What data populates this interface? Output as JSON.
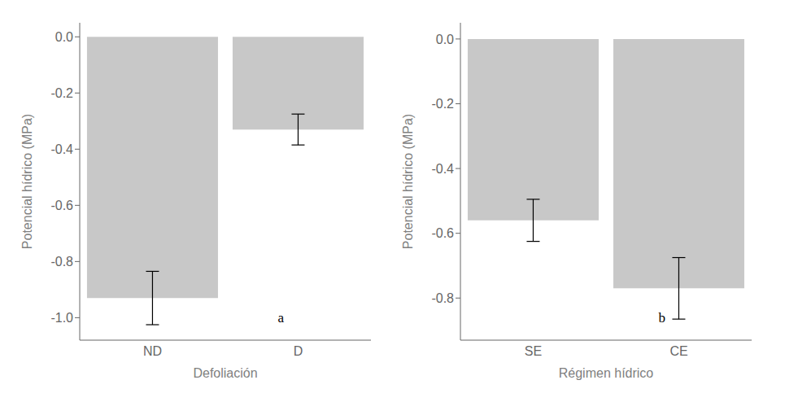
{
  "chart_data": [
    {
      "type": "bar",
      "categories": [
        "ND",
        "D"
      ],
      "values": [
        -0.93,
        -0.33
      ],
      "errors": [
        0.095,
        0.055
      ],
      "xlabel": "Defoliación",
      "ylabel": "Potencial hídrico (MPa)",
      "ylim": [
        -1.08,
        0.05
      ],
      "yticks": [
        {
          "value": 0.0,
          "label": "0.0"
        },
        -0.2,
        -0.4,
        -0.6,
        -0.8,
        {
          "value": -1.0,
          "label": "-1.0"
        }
      ],
      "annotation": "a",
      "color": "#c8c8c8"
    },
    {
      "type": "bar",
      "categories": [
        "SE",
        "CE"
      ],
      "values": [
        -0.56,
        -0.77
      ],
      "errors": [
        0.065,
        0.095
      ],
      "xlabel": "Régimen hídrico",
      "ylabel": "Potencial hídrico (MPa)",
      "ylim": [
        -0.93,
        0.05
      ],
      "yticks": [
        {
          "value": 0.0,
          "label": "0.0"
        },
        -0.2,
        -0.4,
        -0.6,
        {
          "value": -0.8,
          "label": "-0.8"
        }
      ],
      "annotation": "b",
      "color": "#c8c8c8"
    }
  ]
}
